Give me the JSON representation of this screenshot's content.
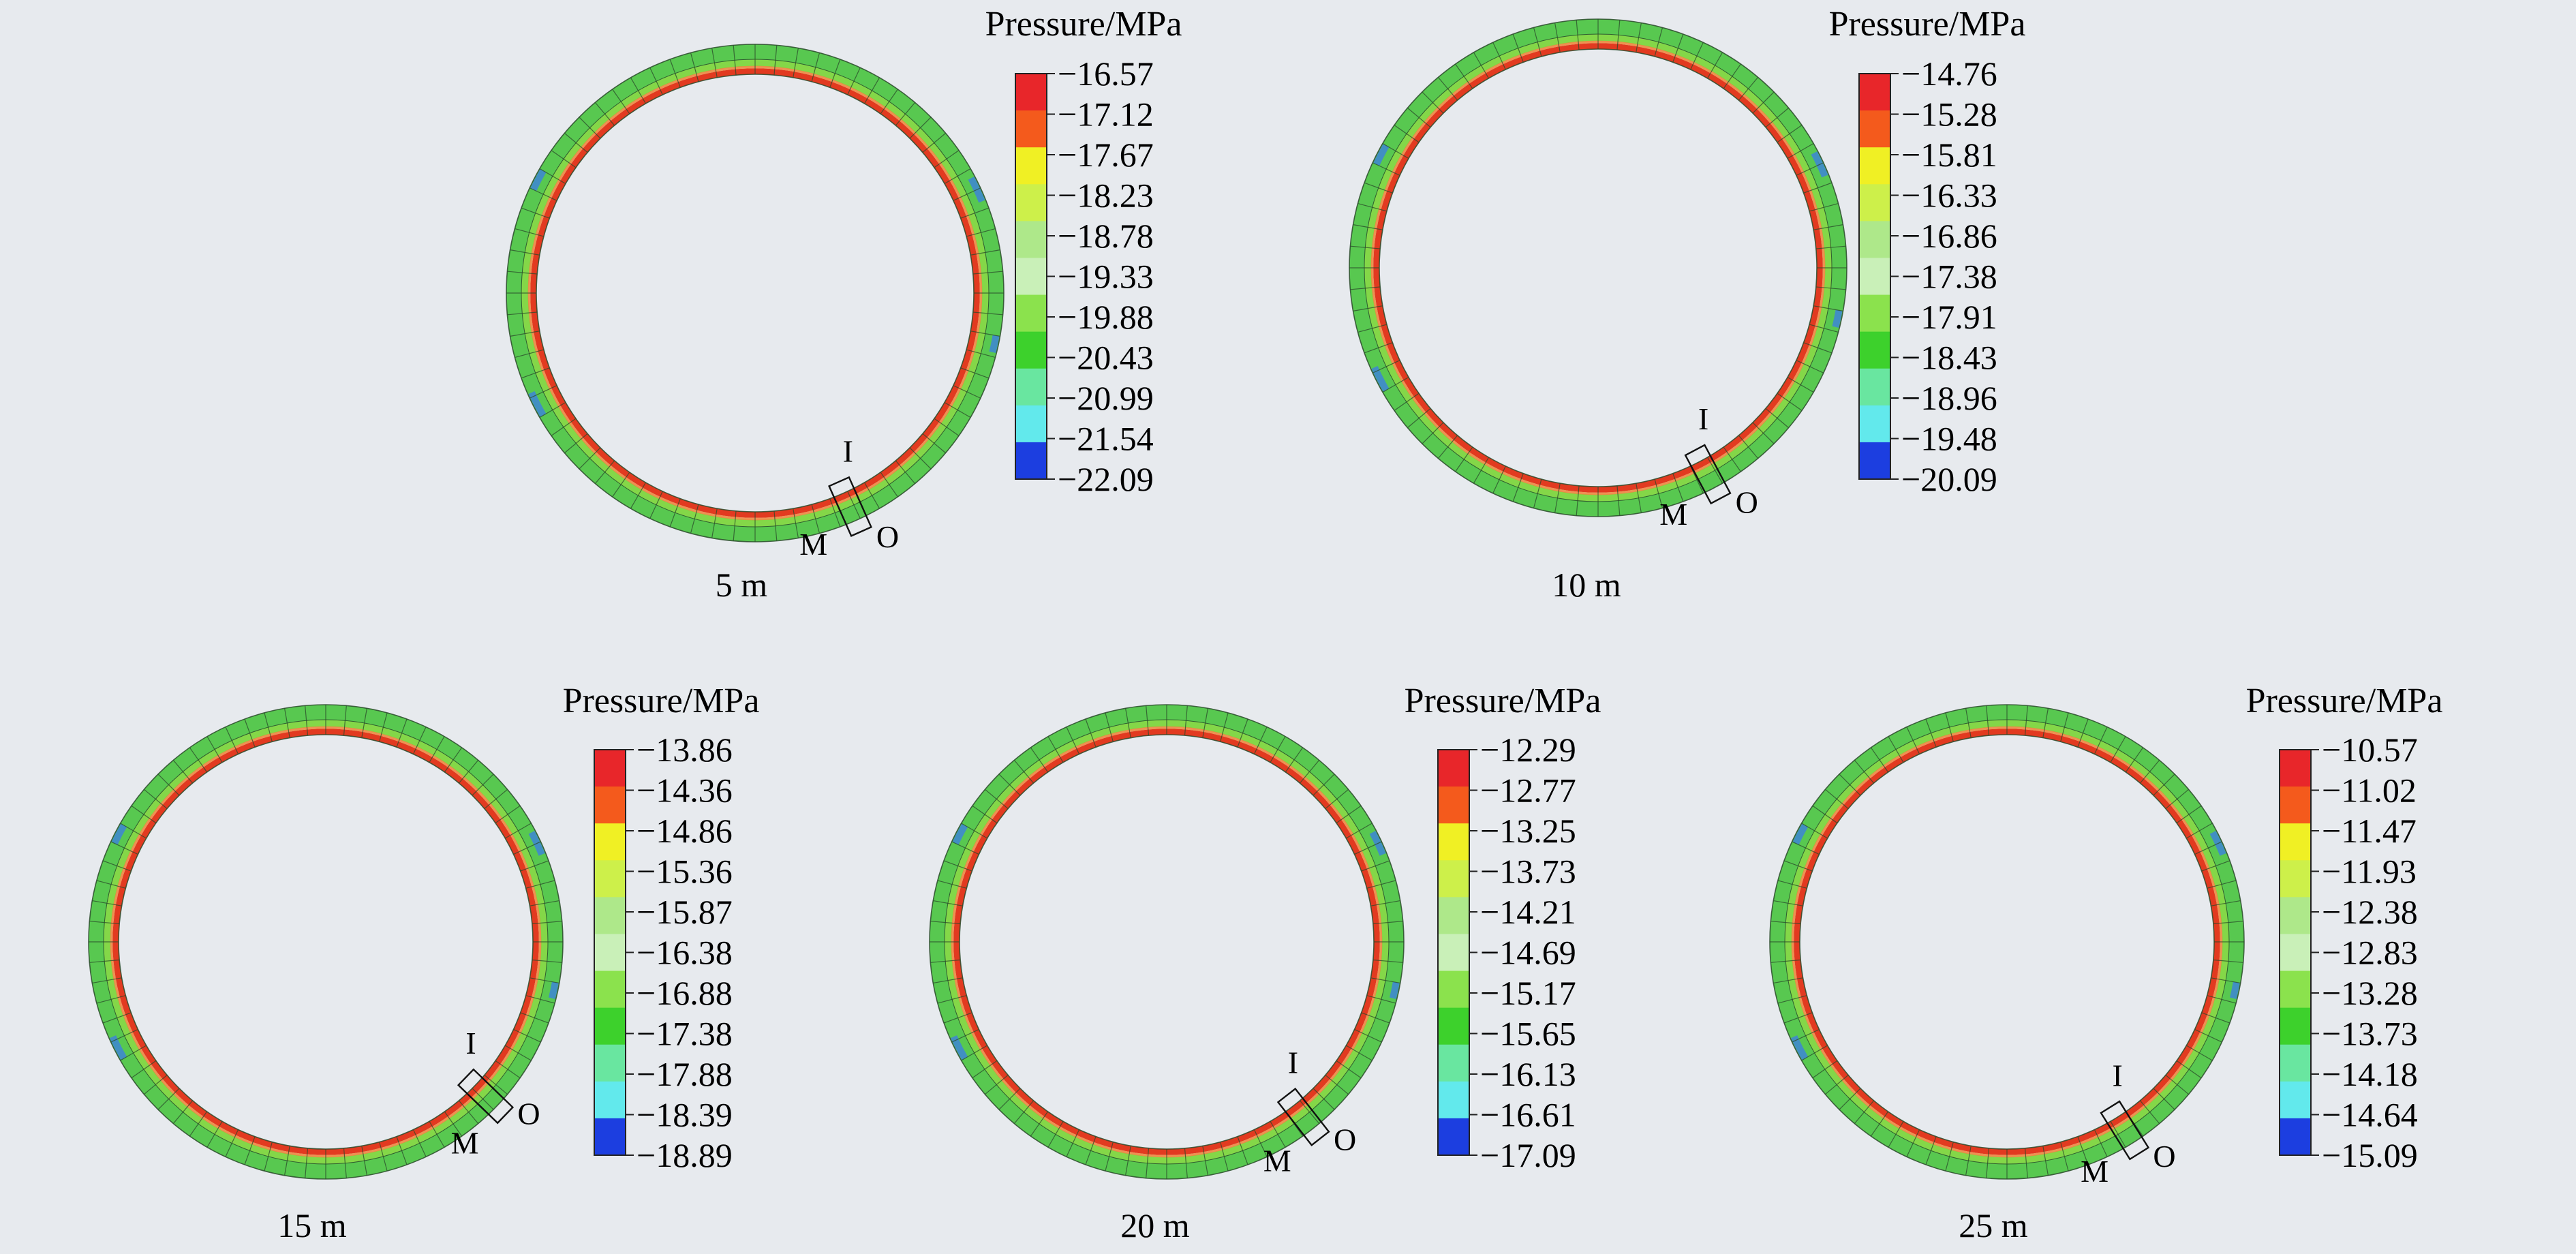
{
  "panels": [
    {
      "caption": "5 m",
      "legend_title": "Pressure/MPa",
      "legend_values": [
        "−16.57",
        "−17.12",
        "−17.67",
        "−18.23",
        "−18.78",
        "−19.33",
        "−19.88",
        "−20.43",
        "−20.99",
        "−21.54",
        "−22.09"
      ],
      "markers": {
        "inner": "I",
        "middle": "M",
        "outer": "O"
      }
    },
    {
      "caption": "10 m",
      "legend_title": "Pressure/MPa",
      "legend_values": [
        "−14.76",
        "−15.28",
        "−15.81",
        "−16.33",
        "−16.86",
        "−17.38",
        "−17.91",
        "−18.43",
        "−18.96",
        "−19.48",
        "−20.09"
      ],
      "markers": {
        "inner": "I",
        "middle": "M",
        "outer": "O"
      }
    },
    {
      "caption": "15 m",
      "legend_title": "Pressure/MPa",
      "legend_values": [
        "−13.86",
        "−14.36",
        "−14.86",
        "−15.36",
        "−15.87",
        "−16.38",
        "−16.88",
        "−17.38",
        "−17.88",
        "−18.39",
        "−18.89"
      ],
      "markers": {
        "inner": "I",
        "middle": "M",
        "outer": "O"
      }
    },
    {
      "caption": "20 m",
      "legend_title": "Pressure/MPa",
      "legend_values": [
        "−12.29",
        "−12.77",
        "−13.25",
        "−13.73",
        "−14.21",
        "−14.69",
        "−15.17",
        "−15.65",
        "−16.13",
        "−16.61",
        "−17.09"
      ],
      "markers": {
        "inner": "I",
        "middle": "M",
        "outer": "O"
      }
    },
    {
      "caption": "25 m",
      "legend_title": "Pressure/MPa",
      "legend_values": [
        "−10.57",
        "−11.02",
        "−11.47",
        "−11.93",
        "−12.38",
        "−12.83",
        "−13.28",
        "−13.73",
        "−14.18",
        "−14.64",
        "−15.09"
      ],
      "markers": {
        "inner": "I",
        "middle": "M",
        "outer": "O"
      }
    }
  ],
  "colors": {
    "background": "#e7eaee",
    "legend_bands": [
      "#e8262a",
      "#f45a1c",
      "#f0f024",
      "#cdf04a",
      "#aee88a",
      "#c9f0b8",
      "#8be24d",
      "#3dd12c",
      "#69e6a0",
      "#62e9ec",
      "#1c3ee0"
    ],
    "ring_outer": "#58c850",
    "ring_mid": "#84d748",
    "ring_inner": "#e23a20",
    "ring_inner_orange": "#f07a2a",
    "ring_blue": "#3a7ce8",
    "mesh": "#2a4a2a"
  }
}
